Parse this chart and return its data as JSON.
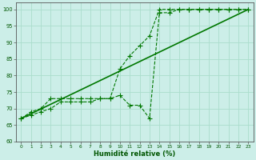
{
  "xlabel": "Humidité relative (%)",
  "background_color": "#cceee8",
  "grid_color": "#aaddcc",
  "line_color": "#007700",
  "xlim": [
    -0.5,
    23.5
  ],
  "ylim": [
    60,
    102
  ],
  "yticks": [
    60,
    65,
    70,
    75,
    80,
    85,
    90,
    95,
    100
  ],
  "xticks": [
    0,
    1,
    2,
    3,
    4,
    5,
    6,
    7,
    8,
    9,
    10,
    11,
    12,
    13,
    14,
    15,
    16,
    17,
    18,
    19,
    20,
    21,
    22,
    23
  ],
  "series1_x": [
    0,
    1,
    2,
    3,
    4,
    5,
    6,
    7,
    8,
    9,
    10,
    11,
    12,
    13,
    14,
    15,
    16,
    17,
    18,
    19,
    20,
    21,
    22,
    23
  ],
  "series1_y": [
    67,
    68,
    69,
    70,
    72,
    72,
    72,
    72,
    73,
    73,
    74,
    71,
    71,
    67,
    99,
    99,
    100,
    100,
    100,
    100,
    100,
    100,
    100,
    100
  ],
  "series2_x": [
    0,
    1,
    2,
    3,
    4,
    5,
    6,
    7,
    8,
    9,
    10,
    11,
    12,
    13,
    14,
    15,
    16,
    17,
    18,
    19,
    20,
    21,
    22,
    23
  ],
  "series2_y": [
    67,
    69,
    70,
    73,
    73,
    73,
    73,
    73,
    73,
    73,
    82,
    86,
    89,
    92,
    100,
    100,
    100,
    100,
    100,
    100,
    100,
    100,
    100,
    100
  ],
  "series3_x": [
    0,
    23
  ],
  "series3_y": [
    67,
    100
  ]
}
